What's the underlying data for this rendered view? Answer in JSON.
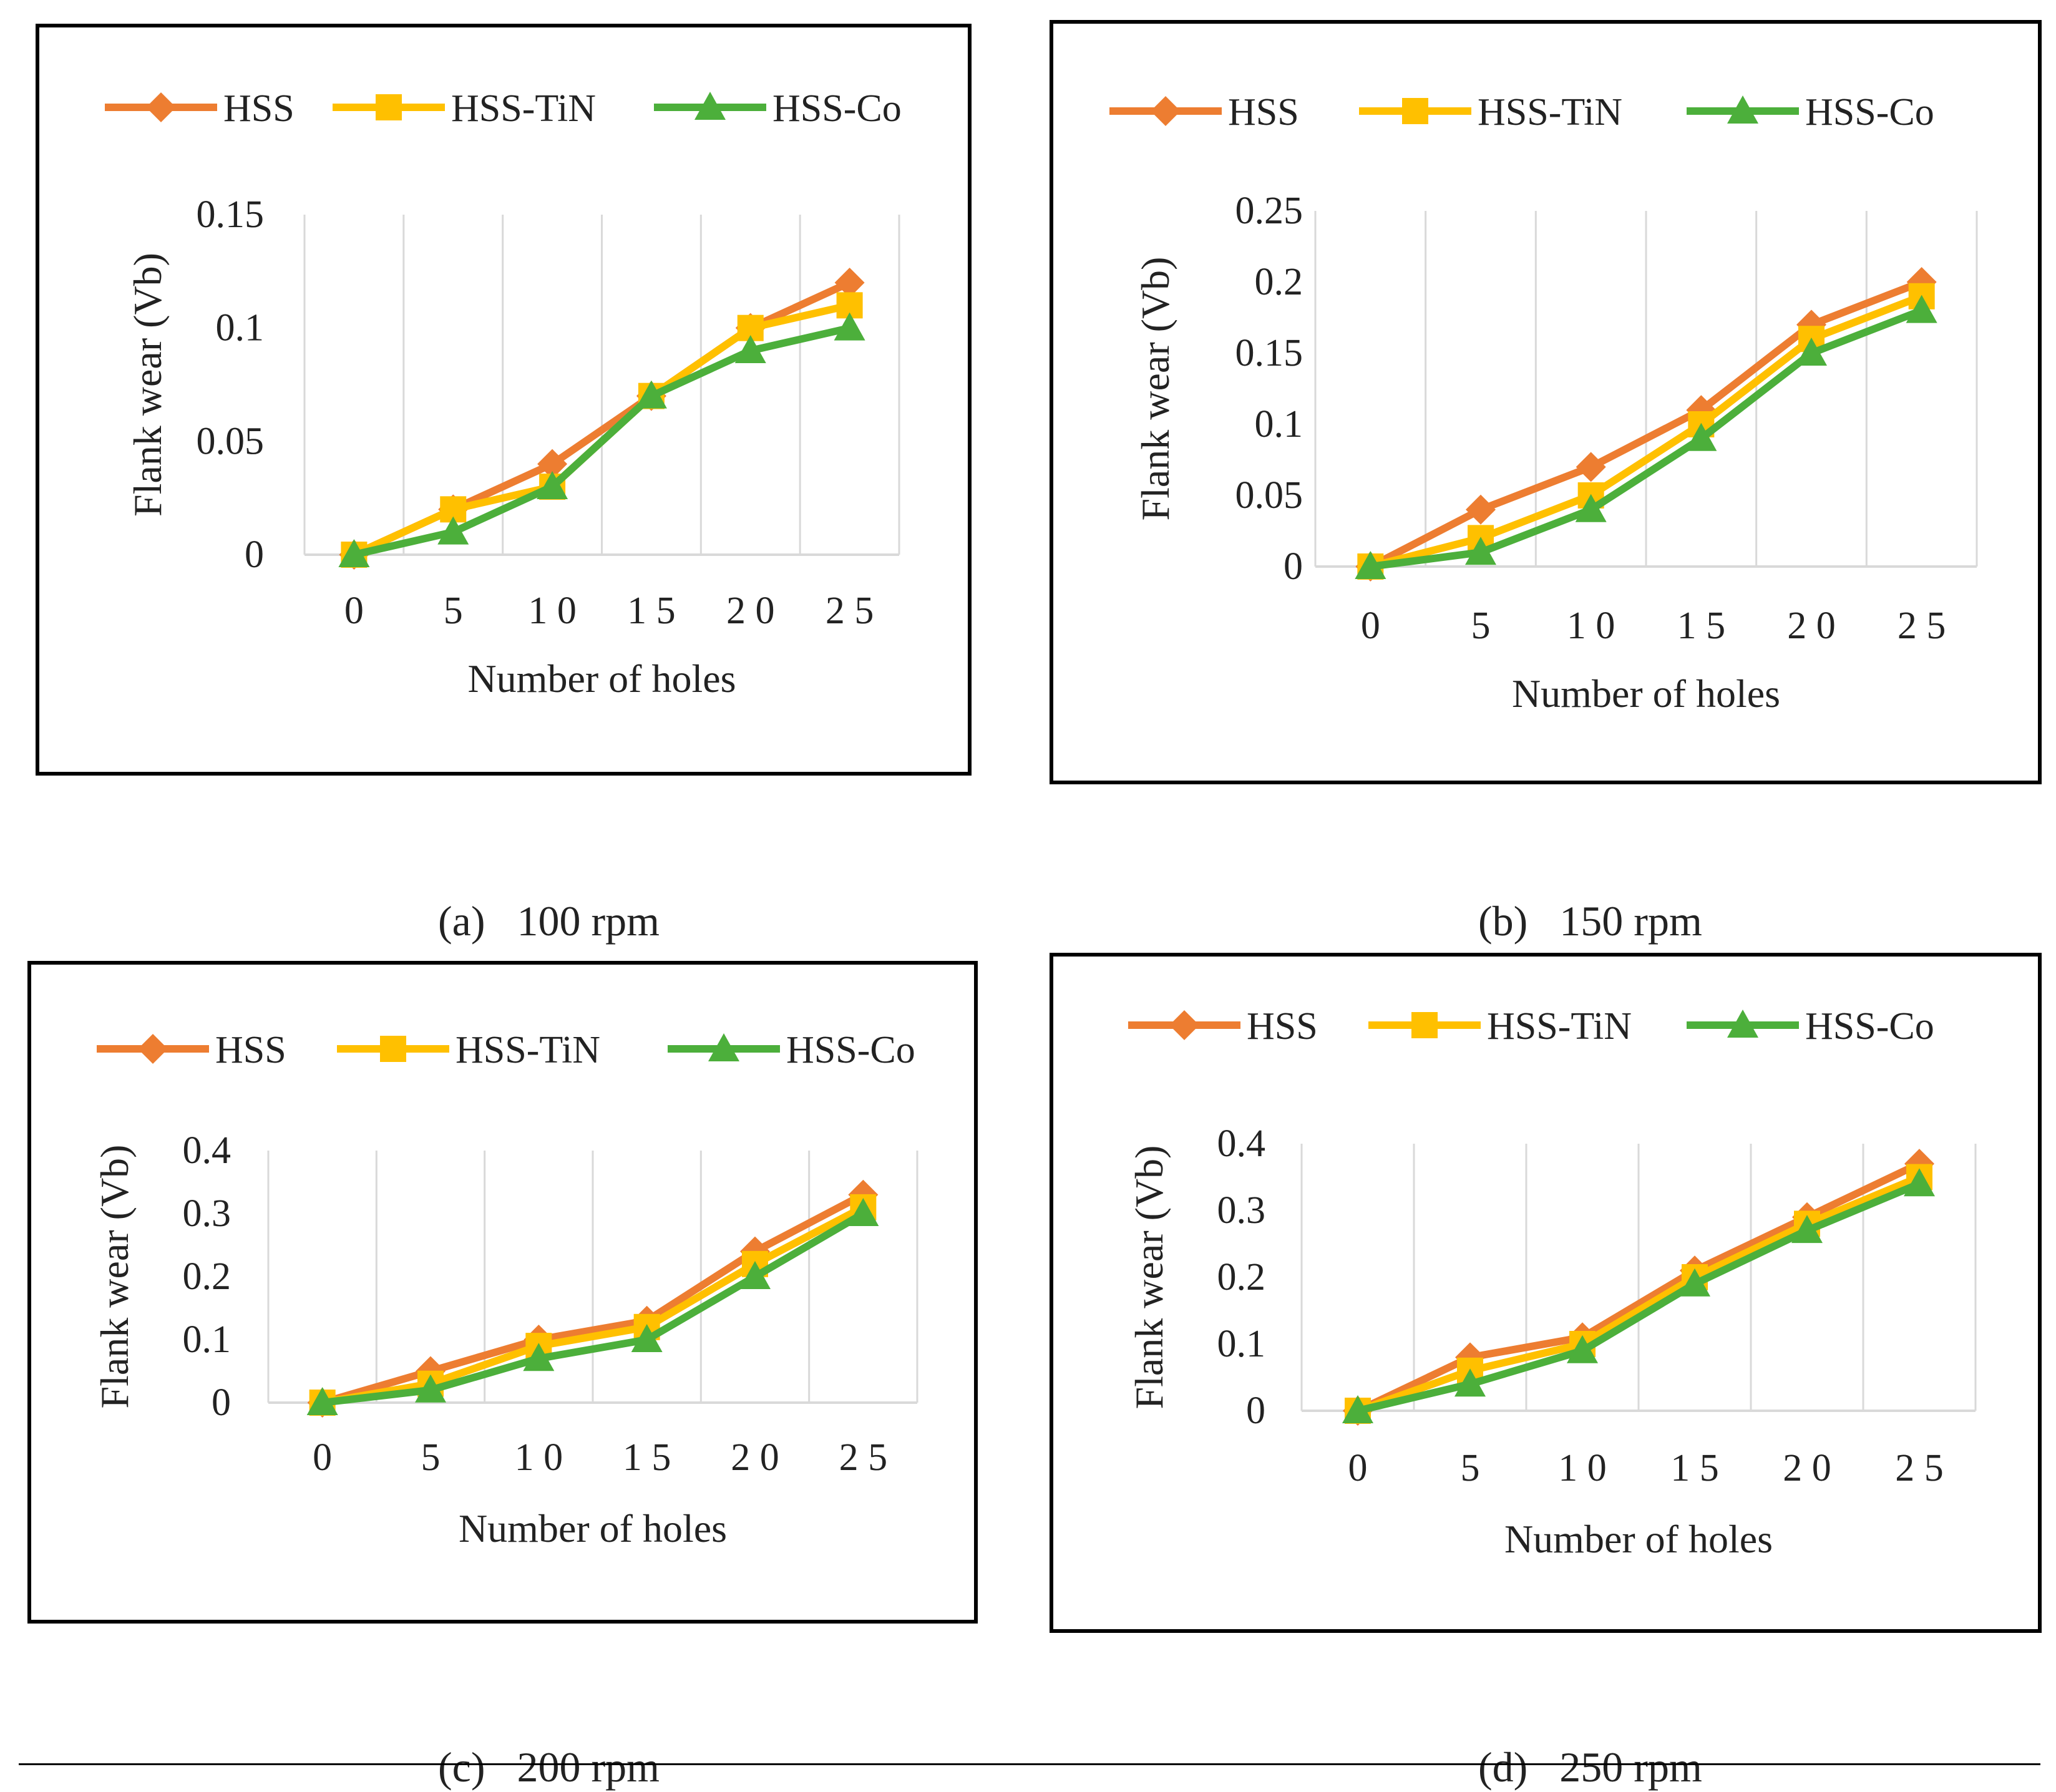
{
  "colors": {
    "HSS": "#ED7D31",
    "HSS-TiN": "#FFC000",
    "HSS-Co": "#4CAF3B",
    "grid": "#d9d9d9"
  },
  "chart_data": [
    {
      "type": "line",
      "caption_label": "(a)",
      "caption_text": "100 rpm",
      "xlabel": "Number of holes",
      "ylabel": "Flank wear (Vb)",
      "categories": [
        "0",
        "5",
        "1 0",
        "1 5",
        "2 0",
        "2 5"
      ],
      "ylim": [
        0,
        0.15
      ],
      "yticks": [
        0,
        0.05,
        0.1,
        0.15
      ],
      "ytick_labels": [
        "0",
        "0.05",
        "0.1",
        "0.15"
      ],
      "legend": "top",
      "grid": true,
      "series": [
        {
          "name": "HSS",
          "marker": "diamond",
          "values": [
            0,
            0.02,
            0.04,
            0.07,
            0.1,
            0.12
          ]
        },
        {
          "name": "HSS-TiN",
          "marker": "square",
          "values": [
            0,
            0.02,
            0.03,
            0.07,
            0.1,
            0.11
          ]
        },
        {
          "name": "HSS-Co",
          "marker": "triangle",
          "values": [
            0,
            0.01,
            0.03,
            0.07,
            0.09,
            0.1
          ]
        }
      ]
    },
    {
      "type": "line",
      "caption_label": "(b)",
      "caption_text": "150 rpm",
      "xlabel": "Number of holes",
      "ylabel": "Flank wear (Vb)",
      "categories": [
        "0",
        "5",
        "1 0",
        "1 5",
        "2 0",
        "2 5"
      ],
      "ylim": [
        0,
        0.25
      ],
      "yticks": [
        0,
        0.05,
        0.1,
        0.15,
        0.2,
        0.25
      ],
      "ytick_labels": [
        "0",
        "0.05",
        "0.1",
        "0.15",
        "0.2",
        "0.25"
      ],
      "legend": "top",
      "grid": true,
      "series": [
        {
          "name": "HSS",
          "marker": "diamond",
          "values": [
            0,
            0.04,
            0.07,
            0.11,
            0.17,
            0.2
          ]
        },
        {
          "name": "HSS-TiN",
          "marker": "square",
          "values": [
            0,
            0.02,
            0.05,
            0.1,
            0.16,
            0.19
          ]
        },
        {
          "name": "HSS-Co",
          "marker": "triangle",
          "values": [
            0,
            0.01,
            0.04,
            0.09,
            0.15,
            0.18
          ]
        }
      ]
    },
    {
      "type": "line",
      "caption_label": "(c)",
      "caption_text": "200 rpm",
      "xlabel": "Number of holes",
      "ylabel": "Flank wear (Vb)",
      "categories": [
        "0",
        "5",
        "1 0",
        "1 5",
        "2 0",
        "2 5"
      ],
      "ylim": [
        0,
        0.4
      ],
      "yticks": [
        0,
        0.1,
        0.2,
        0.3,
        0.4
      ],
      "ytick_labels": [
        "0",
        "0.1",
        "0.2",
        "0.3",
        "0.4"
      ],
      "legend": "top",
      "grid": true,
      "series": [
        {
          "name": "HSS",
          "marker": "diamond",
          "values": [
            0,
            0.05,
            0.1,
            0.13,
            0.24,
            0.33
          ]
        },
        {
          "name": "HSS-TiN",
          "marker": "square",
          "values": [
            0,
            0.03,
            0.09,
            0.12,
            0.22,
            0.31
          ]
        },
        {
          "name": "HSS-Co",
          "marker": "triangle",
          "values": [
            0,
            0.02,
            0.07,
            0.1,
            0.2,
            0.3
          ]
        }
      ]
    },
    {
      "type": "line",
      "caption_label": "(d)",
      "caption_text": "250 rpm",
      "xlabel": "Number of holes",
      "ylabel": "Flank wear (Vb)",
      "categories": [
        "0",
        "5",
        "1 0",
        "1 5",
        "2 0",
        "2 5"
      ],
      "ylim": [
        0,
        0.4
      ],
      "yticks": [
        0,
        0.1,
        0.2,
        0.3,
        0.4
      ],
      "ytick_labels": [
        "0",
        "0.1",
        "0.2",
        "0.3",
        "0.4"
      ],
      "legend": "top",
      "grid": true,
      "series": [
        {
          "name": "HSS",
          "marker": "diamond",
          "values": [
            0,
            0.08,
            0.11,
            0.21,
            0.29,
            0.37
          ]
        },
        {
          "name": "HSS-TiN",
          "marker": "square",
          "values": [
            0,
            0.06,
            0.1,
            0.2,
            0.28,
            0.35
          ]
        },
        {
          "name": "HSS-Co",
          "marker": "triangle",
          "values": [
            0,
            0.04,
            0.09,
            0.19,
            0.27,
            0.34
          ]
        }
      ]
    }
  ]
}
